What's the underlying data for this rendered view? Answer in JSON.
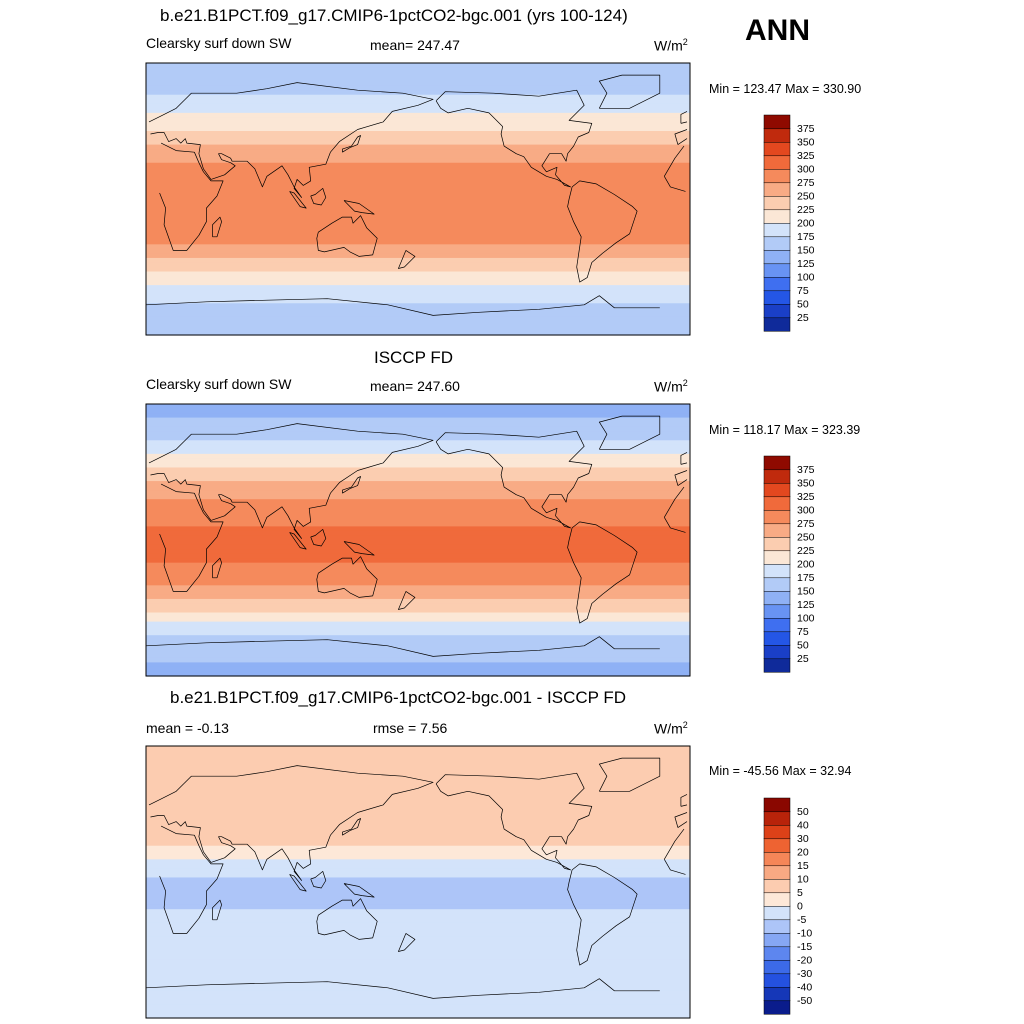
{
  "season": "ANN",
  "colors": {
    "abs_scale": [
      "#0f2a9a",
      "#1a3fc7",
      "#2456e6",
      "#3f6ff0",
      "#6893f3",
      "#8fb1f5",
      "#b2cbf7",
      "#d3e3fa",
      "#fbe7d6",
      "#fbcdb0",
      "#f8ab85",
      "#f58a5c",
      "#f06a3b",
      "#e3481f",
      "#c02a0d",
      "#8f0a00"
    ],
    "diff_scale": [
      "#0a1c8c",
      "#1537b8",
      "#2451e0",
      "#3c6ae8",
      "#5d86ef",
      "#86a7f4",
      "#adc5f8",
      "#d3e3fa",
      "#fde8d8",
      "#fcccb0",
      "#f8a983",
      "#f58658",
      "#ee6332",
      "#dd4118",
      "#b8230a",
      "#8a0700"
    ],
    "coast": "#000000"
  },
  "panels": [
    {
      "title": "b.e21.B1PCT.f09_g17.CMIP6-1pctCO2-bgc.001 (yrs 100-124)",
      "left_label": "Clearsky surf down SW",
      "center_label": "mean= 247.47",
      "units": "W/m",
      "units_sup": "2",
      "minmax": "Min = 123.47 Max = 330.90"
    },
    {
      "title": "ISCCP FD",
      "left_label": "Clearsky surf down SW",
      "center_label": "mean= 247.60",
      "units": "W/m",
      "units_sup": "2",
      "minmax": "Min = 118.17 Max = 323.39"
    },
    {
      "title": "b.e21.B1PCT.f09_g17.CMIP6-1pctCO2-bgc.001 - ISCCP FD",
      "left_label": "mean =  -0.13",
      "center_label": "rmse =   7.56",
      "units": "W/m",
      "units_sup": "2",
      "minmax": "Min = -45.56 Max =  32.94"
    }
  ],
  "chart_data": [
    {
      "type": "heatmap",
      "projection": "cylindrical equidistant, global",
      "x_range": [
        0,
        360
      ],
      "y_range": [
        -90,
        90
      ],
      "colorbar_levels": [
        25,
        50,
        75,
        100,
        125,
        150,
        175,
        200,
        225,
        250,
        275,
        300,
        325,
        350,
        375
      ],
      "zonal_mean_estimate": {
        "lat": [
          90,
          75,
          60,
          45,
          30,
          15,
          0,
          -15,
          -30,
          -45,
          -60,
          -75,
          -90
        ],
        "value": [
          150,
          165,
          190,
          225,
          265,
          290,
          295,
          295,
          275,
          235,
          190,
          165,
          150
        ]
      }
    },
    {
      "type": "heatmap",
      "projection": "cylindrical equidistant, global",
      "x_range": [
        0,
        360
      ],
      "y_range": [
        -90,
        90
      ],
      "colorbar_levels": [
        25,
        50,
        75,
        100,
        125,
        150,
        175,
        200,
        225,
        250,
        275,
        300,
        325,
        350,
        375
      ],
      "zonal_mean_estimate": {
        "lat": [
          90,
          75,
          60,
          45,
          30,
          15,
          0,
          -15,
          -30,
          -45,
          -60,
          -75,
          -90
        ],
        "value": [
          140,
          155,
          190,
          230,
          270,
          295,
          305,
          300,
          275,
          230,
          180,
          155,
          140
        ]
      }
    },
    {
      "type": "heatmap",
      "projection": "cylindrical equidistant, global",
      "x_range": [
        0,
        360
      ],
      "y_range": [
        -90,
        90
      ],
      "colorbar_levels": [
        -50,
        -40,
        -30,
        -20,
        -15,
        -10,
        -5,
        0,
        5,
        10,
        15,
        20,
        30,
        40,
        50
      ],
      "zonal_mean_estimate": {
        "lat": [
          90,
          75,
          60,
          45,
          30,
          15,
          0,
          -15,
          -30,
          -45,
          -60,
          -75,
          -90
        ],
        "value": [
          5,
          8,
          6,
          10,
          8,
          0,
          -6,
          -6,
          -2,
          0,
          -2,
          -2,
          0
        ]
      }
    }
  ]
}
